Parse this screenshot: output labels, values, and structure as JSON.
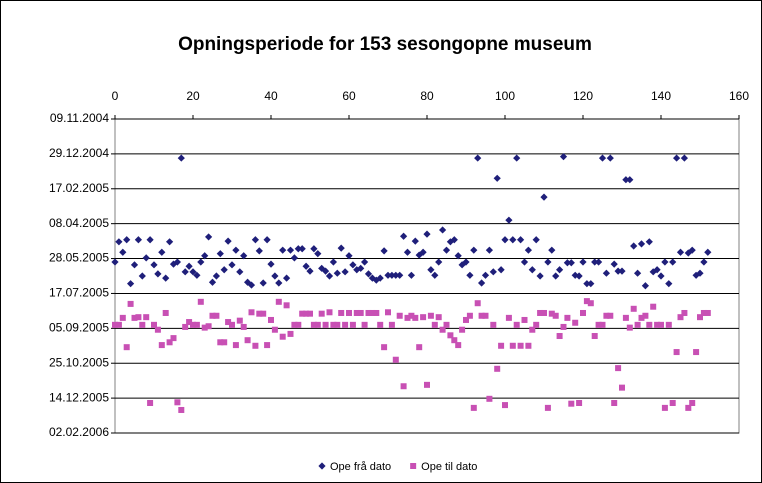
{
  "chart_data": {
    "type": "scatter",
    "title": "Opningsperiode for 153 sesongopne museum",
    "x": [
      0,
      1,
      2,
      3,
      4,
      5,
      6,
      7,
      8,
      9,
      10,
      11,
      12,
      13,
      14,
      15,
      16,
      17,
      18,
      19,
      20,
      21,
      22,
      23,
      24,
      25,
      26,
      27,
      28,
      29,
      30,
      31,
      32,
      33,
      34,
      35,
      36,
      37,
      38,
      39,
      40,
      41,
      42,
      43,
      44,
      45,
      46,
      47,
      48,
      49,
      50,
      51,
      52,
      53,
      54,
      55,
      56,
      57,
      58,
      59,
      60,
      61,
      62,
      63,
      64,
      65,
      66,
      67,
      68,
      69,
      70,
      71,
      72,
      73,
      74,
      75,
      76,
      77,
      78,
      79,
      80,
      81,
      82,
      83,
      84,
      85,
      86,
      87,
      88,
      89,
      90,
      91,
      92,
      93,
      94,
      95,
      96,
      97,
      98,
      99,
      100,
      101,
      102,
      103,
      104,
      105,
      106,
      107,
      108,
      109,
      110,
      111,
      112,
      113,
      114,
      115,
      116,
      117,
      118,
      119,
      120,
      121,
      122,
      123,
      124,
      125,
      126,
      127,
      128,
      129,
      130,
      131,
      132,
      133,
      134,
      135,
      136,
      137,
      138,
      139,
      140,
      141,
      142,
      143,
      144,
      145,
      146,
      147,
      148,
      149,
      150,
      151,
      152
    ],
    "series": [
      {
        "name": "Ope frå dato",
        "color": "#1f1f7a",
        "marker": "diamond",
        "values": [
          38505,
          38476,
          38491,
          38473,
          38536,
          38509,
          38473,
          38525,
          38499,
          38473,
          38509,
          38522,
          38491,
          38528,
          38476,
          38508,
          38505,
          38356,
          38519,
          38511,
          38519,
          38524,
          38505,
          38496,
          38469,
          38534,
          38525,
          38493,
          38516,
          38475,
          38509,
          38488,
          38519,
          38496,
          38534,
          38538,
          38473,
          38489,
          38535,
          38473,
          38508,
          38525,
          38535,
          38488,
          38528,
          38488,
          38499,
          38486,
          38486,
          38511,
          38518,
          38486,
          38493,
          38514,
          38518,
          38525,
          38505,
          38521,
          38485,
          38519,
          38496,
          38509,
          38516,
          38514,
          38505,
          38522,
          38528,
          38531,
          38528,
          38489,
          38524,
          38524,
          38524,
          38524,
          38468,
          38491,
          38524,
          38475,
          38495,
          38491,
          38465,
          38516,
          38524,
          38505,
          38459,
          38488,
          38476,
          38473,
          38496,
          38509,
          38505,
          38524,
          38488,
          38356,
          38535,
          38524,
          38488,
          38519,
          38385,
          38516,
          38473,
          38445,
          38473,
          38356,
          38473,
          38505,
          38488,
          38516,
          38473,
          38525,
          38412,
          38505,
          38488,
          38525,
          38516,
          38354,
          38506,
          38506,
          38524,
          38525,
          38505,
          38536,
          38536,
          38505,
          38505,
          38356,
          38521,
          38356,
          38508,
          38518,
          38518,
          38387,
          38387,
          38482,
          38521,
          38479,
          38539,
          38476,
          38519,
          38516,
          38525,
          38505,
          38536,
          38505,
          38356,
          38491,
          38356,
          38492,
          38488,
          38524,
          38521,
          38505,
          38491
        ]
      },
      {
        "name": "Ope til dato",
        "color": "#c850b4",
        "marker": "square",
        "values": [
          38595,
          38595,
          38585,
          38627,
          38565,
          38585,
          38584,
          38595,
          38584,
          38707,
          38595,
          38602,
          38624,
          38578,
          38620,
          38614,
          38706,
          38717,
          38598,
          38591,
          38595,
          38595,
          38562,
          38599,
          38597,
          38582,
          38582,
          38620,
          38620,
          38591,
          38595,
          38624,
          38589,
          38598,
          38617,
          38577,
          38625,
          38579,
          38579,
          38624,
          38588,
          38602,
          38562,
          38612,
          38567,
          38608,
          38595,
          38595,
          38579,
          38579,
          38579,
          38595,
          38595,
          38579,
          38595,
          38577,
          38595,
          38595,
          38578,
          38595,
          38578,
          38595,
          38578,
          38578,
          38595,
          38578,
          38578,
          38578,
          38595,
          38627,
          38577,
          38595,
          38645,
          38582,
          38683,
          38585,
          38582,
          38585,
          38627,
          38584,
          38681,
          38582,
          38595,
          38584,
          38602,
          38595,
          38610,
          38617,
          38624,
          38602,
          38588,
          38582,
          38714,
          38564,
          38582,
          38582,
          38701,
          38595,
          38658,
          38625,
          38710,
          38585,
          38625,
          38595,
          38625,
          38588,
          38625,
          38602,
          38595,
          38578,
          38578,
          38714,
          38579,
          38582,
          38611,
          38598,
          38585,
          38708,
          38592,
          38707,
          38578,
          38561,
          38564,
          38611,
          38595,
          38595,
          38582,
          38582,
          38707,
          38657,
          38685,
          38585,
          38599,
          38572,
          38595,
          38585,
          38582,
          38595,
          38569,
          38595,
          38595,
          38714,
          38595,
          38707,
          38634,
          38584,
          38578,
          38714,
          38707,
          38634,
          38584,
          38578,
          38578
        ]
      }
    ],
    "xlim": [
      0,
      160
    ],
    "xticks": [
      0,
      20,
      40,
      60,
      80,
      100,
      120,
      140,
      160
    ],
    "ylim": [
      38300,
      38750
    ],
    "y_reversed": true,
    "yticks": [
      {
        "value": 38300,
        "label": "09.11.2004"
      },
      {
        "value": 38350,
        "label": "29.12.2004"
      },
      {
        "value": 38400,
        "label": "17.02.2005"
      },
      {
        "value": 38450,
        "label": "08.04.2005"
      },
      {
        "value": 38500,
        "label": "28.05.2005"
      },
      {
        "value": 38550,
        "label": "17.07.2005"
      },
      {
        "value": 38600,
        "label": "05.09.2005"
      },
      {
        "value": 38650,
        "label": "25.10.2005"
      },
      {
        "value": 38700,
        "label": "14.12.2005"
      },
      {
        "value": 38750,
        "label": "02.02.2006"
      }
    ],
    "grid": true,
    "legend": "bottom"
  }
}
